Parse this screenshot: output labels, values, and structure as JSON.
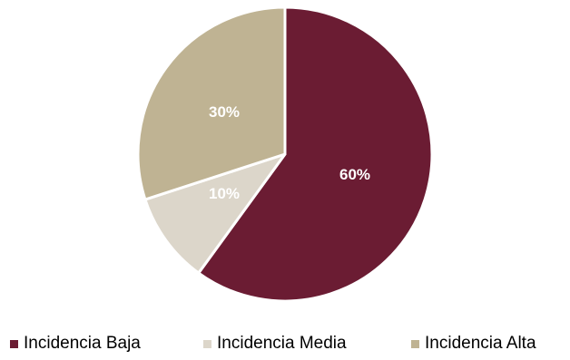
{
  "chart_data": {
    "type": "pie",
    "title": "",
    "slices": [
      {
        "label": "Incidencia Baja",
        "value": 60,
        "display": "60%",
        "color": "#6B1C33"
      },
      {
        "label": "Incidencia Media",
        "value": 10,
        "display": "10%",
        "color": "#DCD6CA"
      },
      {
        "label": "Incidencia Alta",
        "value": 30,
        "display": "30%",
        "color": "#BFB393"
      }
    ],
    "start_angle_deg": 0,
    "direction": "clockwise",
    "legend_position": "bottom"
  },
  "legend": {
    "items": [
      {
        "label": "Incidencia Baja",
        "color": "#6B1C33"
      },
      {
        "label": "Incidencia Media",
        "color": "#DCD6CA"
      },
      {
        "label": "Incidencia Alta",
        "color": "#BFB393"
      }
    ]
  }
}
